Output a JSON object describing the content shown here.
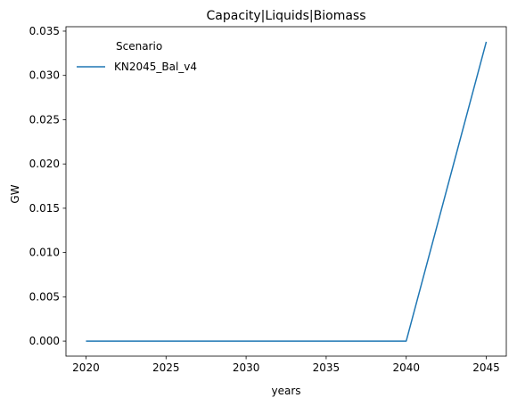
{
  "chart_data": {
    "type": "line",
    "title": "Capacity|Liquids|Biomass",
    "xlabel": "years",
    "ylabel": "GW",
    "x": [
      2020,
      2025,
      2030,
      2035,
      2040,
      2045
    ],
    "series": [
      {
        "name": "KN2045_Bal_v4",
        "color": "#1f77b4",
        "values": [
          0.0,
          0.0,
          0.0,
          0.0,
          0.0,
          0.0338
        ]
      }
    ],
    "xlim": [
      2018.75,
      2046.25
    ],
    "ylim": [
      -0.0017,
      0.0355
    ],
    "xticks": [
      2020,
      2025,
      2030,
      2035,
      2040,
      2045
    ],
    "xtick_labels": [
      "2020",
      "2025",
      "2030",
      "2035",
      "2040",
      "2045"
    ],
    "yticks": [
      0.0,
      0.005,
      0.01,
      0.015,
      0.02,
      0.025,
      0.03,
      0.035
    ],
    "ytick_labels": [
      "0.000",
      "0.005",
      "0.010",
      "0.015",
      "0.020",
      "0.025",
      "0.030",
      "0.035"
    ],
    "grid": false,
    "legend": {
      "title": "Scenario",
      "position": "top-left"
    }
  }
}
